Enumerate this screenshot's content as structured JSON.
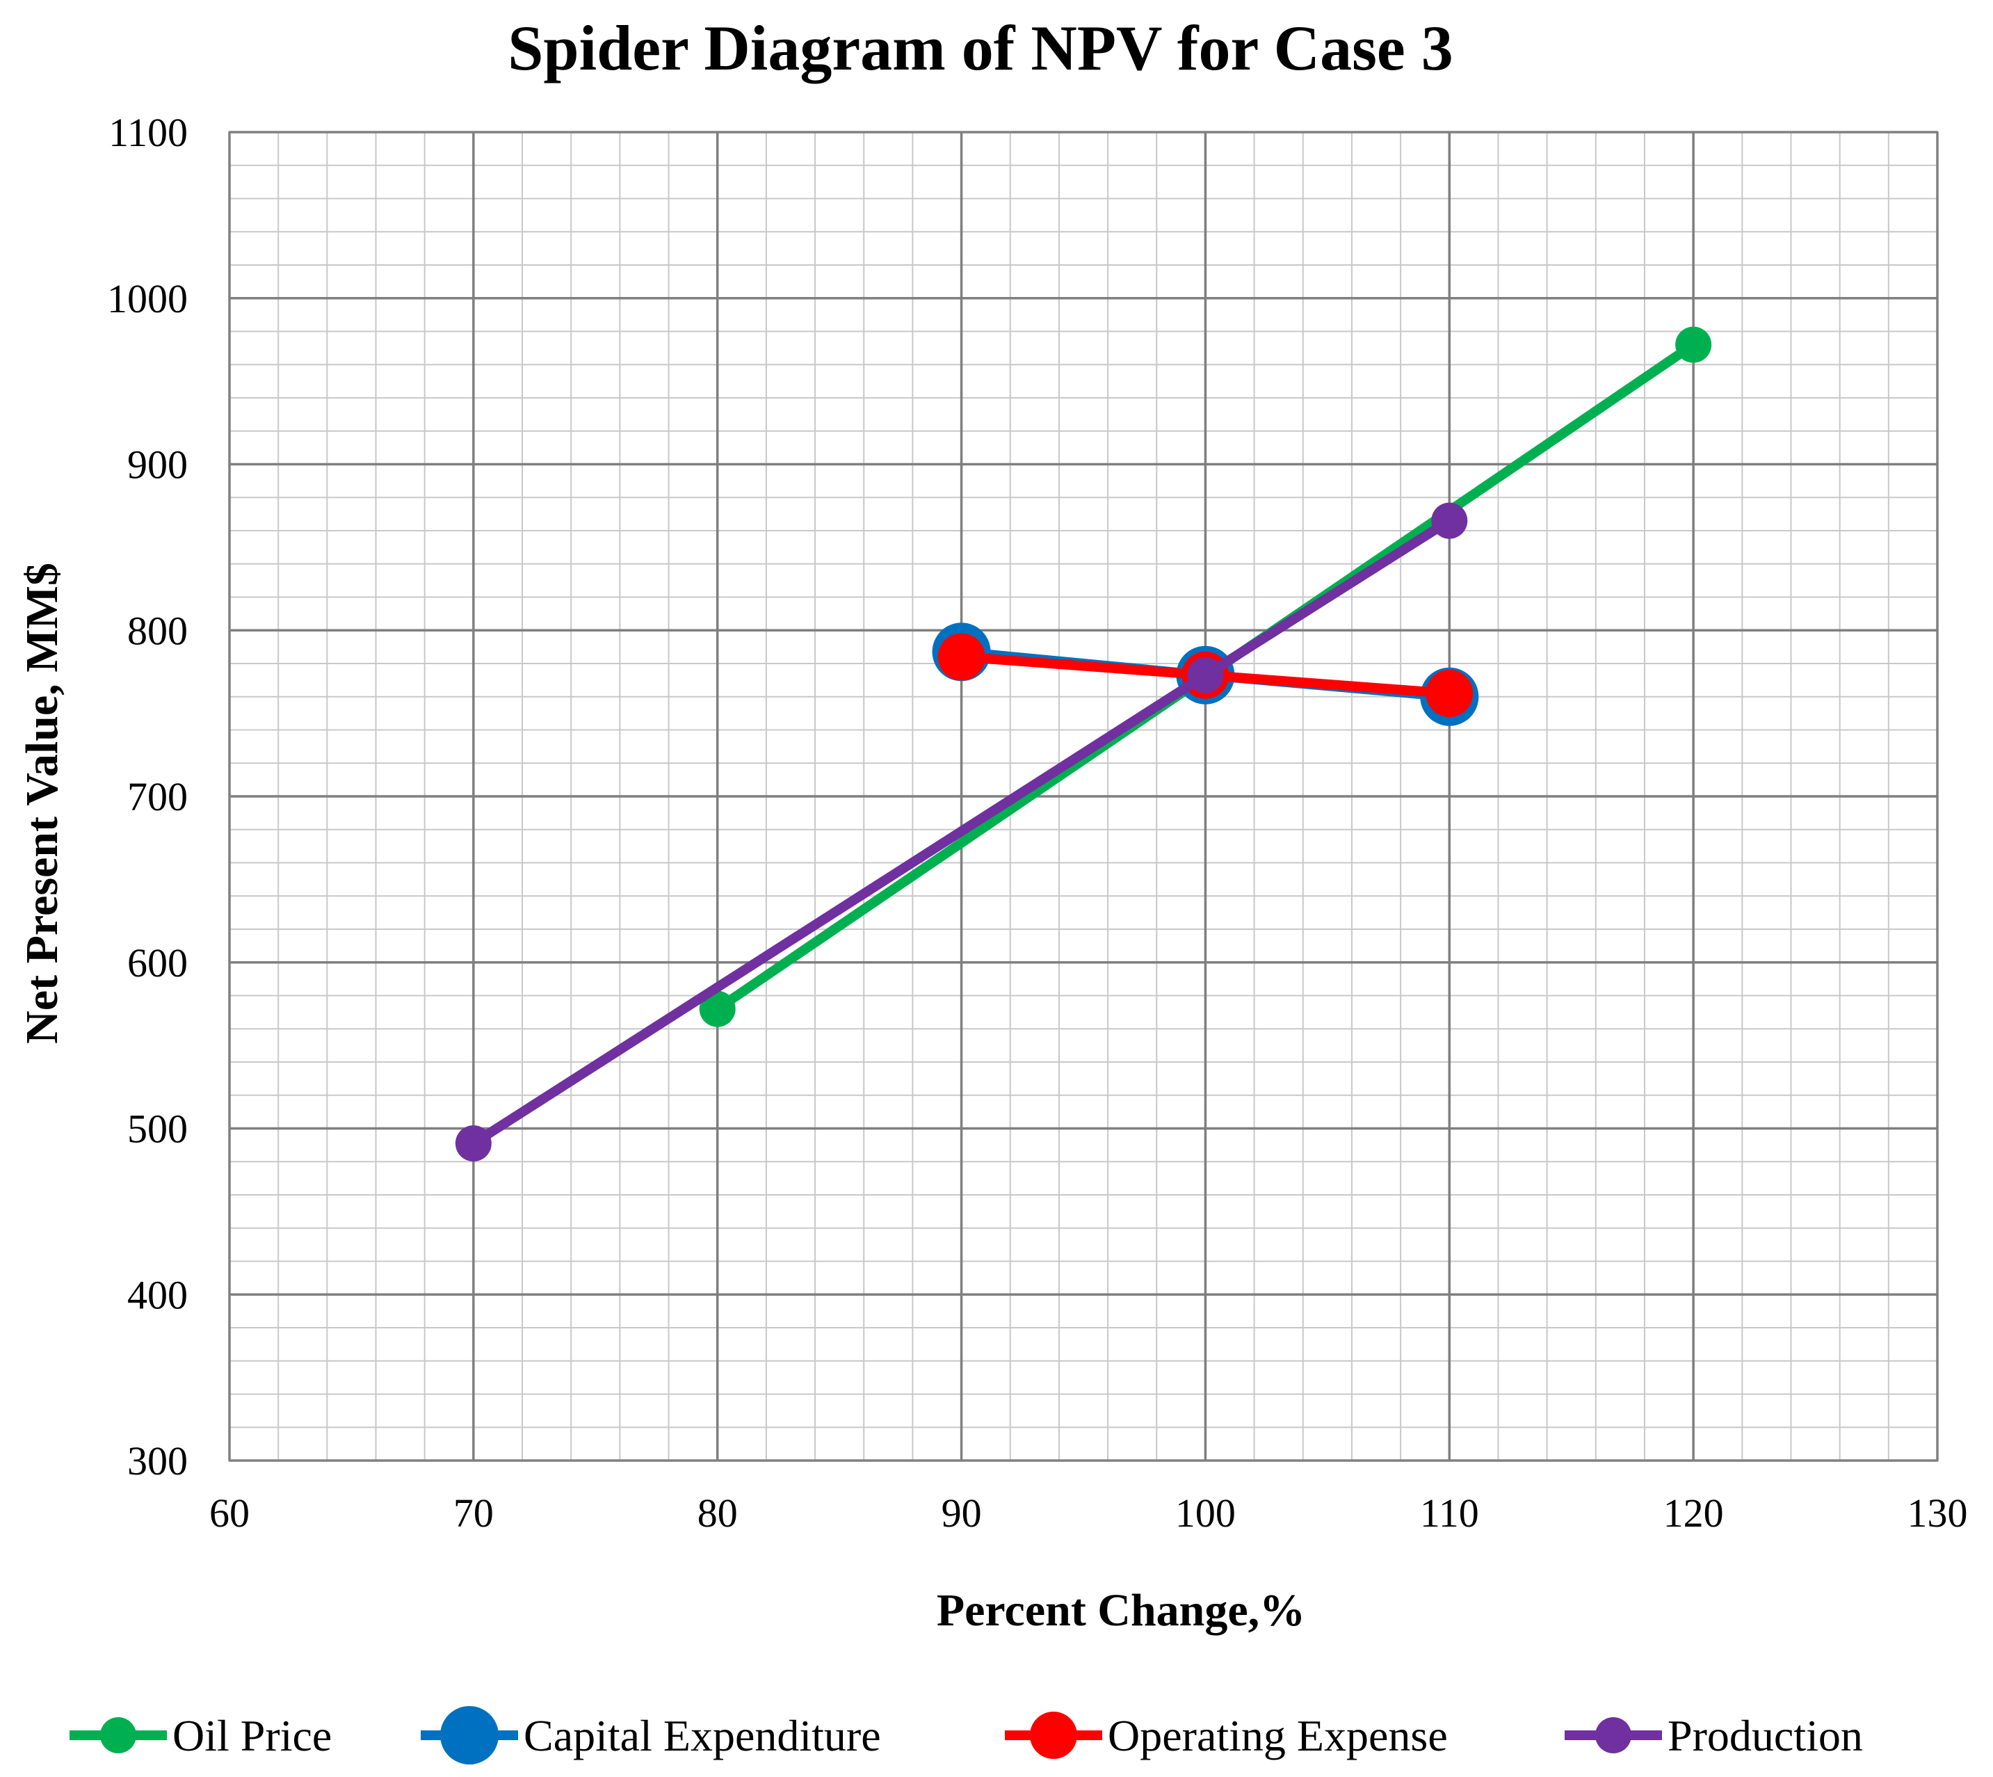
{
  "chart_data": {
    "type": "line",
    "title": "Spider Diagram of NPV for Case 3",
    "xlabel": "Percent Change,%",
    "ylabel": "Net Present Value, MM$",
    "xlim": [
      60,
      130
    ],
    "ylim": [
      300,
      1100
    ],
    "x_major_step": 10,
    "y_major_step": 100,
    "x_minor_step": 2,
    "y_minor_step": 20,
    "grid": true,
    "x_ticks": [
      "60",
      "70",
      "80",
      "90",
      "100",
      "110",
      "120",
      "130"
    ],
    "y_ticks": [
      "300",
      "400",
      "500",
      "600",
      "700",
      "800",
      "900",
      "1000",
      "1100"
    ],
    "legend_position": "bottom",
    "series": [
      {
        "name": "Oil Price",
        "color": "#00b050",
        "marker": "small",
        "x": [
          80,
          100,
          120
        ],
        "y": [
          572,
          772,
          972
        ]
      },
      {
        "name": "Capital Expenditure",
        "color": "#0070c0",
        "marker": "large",
        "x": [
          90,
          100,
          110
        ],
        "y": [
          787,
          773,
          760
        ]
      },
      {
        "name": "Operating Expense",
        "color": "#ff0000",
        "marker": "medium",
        "x": [
          90,
          100,
          110
        ],
        "y": [
          784,
          773,
          762
        ]
      },
      {
        "name": "Production",
        "color": "#7030a0",
        "marker": "small",
        "x": [
          70,
          100,
          110
        ],
        "y": [
          491,
          773,
          866
        ]
      }
    ]
  }
}
